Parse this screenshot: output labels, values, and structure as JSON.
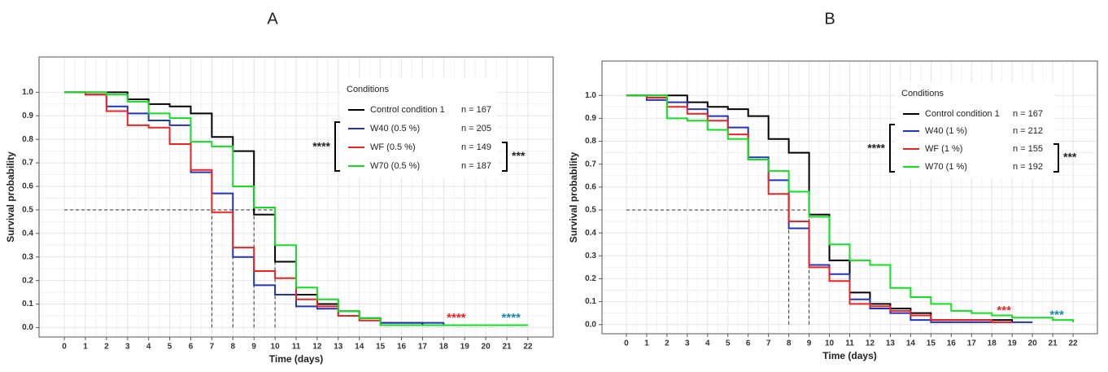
{
  "chart_data": [
    {
      "type": "step",
      "panel_label": "A",
      "xlabel": "Time (days)",
      "ylabel": "Survival probability",
      "xlim": [
        -1.2,
        23.2
      ],
      "ylim": [
        -0.04,
        1.15
      ],
      "xticks": [
        0,
        1,
        2,
        3,
        4,
        5,
        6,
        7,
        8,
        9,
        10,
        11,
        12,
        13,
        14,
        15,
        16,
        17,
        18,
        19,
        20,
        21,
        22
      ],
      "yticks": [
        {
          "value": 0,
          "label": "0.0"
        },
        0.1,
        0.2,
        0.3,
        0.4,
        0.5,
        0.6,
        0.7,
        0.8,
        0.9,
        {
          "value": 1,
          "label": "1.0"
        }
      ],
      "grid": true,
      "legend_title": "Conditions",
      "x": [
        0,
        1,
        2,
        3,
        4,
        5,
        6,
        7,
        8,
        9,
        10,
        11,
        12,
        13,
        14,
        15,
        16,
        17,
        18,
        19,
        20,
        21,
        22
      ],
      "series": [
        {
          "name": "Control condition 1",
          "n_label": "n = 167",
          "color": "#000000",
          "values": [
            1.0,
            1.0,
            1.0,
            0.97,
            0.95,
            0.94,
            0.91,
            0.81,
            0.75,
            0.48,
            0.28,
            0.14,
            0.1,
            0.07,
            0.04,
            0.02,
            0.02,
            0.01,
            0.01,
            0.01,
            0.01,
            null,
            null
          ]
        },
        {
          "name": "W40 (0.5 %)",
          "n_label": "n = 205",
          "color": "#2233bb",
          "values": [
            1.0,
            0.99,
            0.94,
            0.91,
            0.88,
            0.86,
            0.66,
            0.57,
            0.3,
            0.18,
            0.14,
            0.09,
            0.08,
            0.05,
            0.04,
            0.02,
            0.02,
            0.02,
            0.01,
            0.01,
            0.01,
            null,
            null
          ]
        },
        {
          "name": "WF (0.5 %)",
          "n_label": "n = 149",
          "color": "#ee2222",
          "values": [
            1.0,
            0.99,
            0.92,
            0.86,
            0.85,
            0.78,
            0.67,
            0.49,
            0.34,
            0.24,
            0.21,
            0.12,
            0.09,
            0.05,
            0.03,
            0.01,
            0.01,
            0.01,
            0.01,
            0.01,
            null,
            null,
            null
          ]
        },
        {
          "name": "W70 (0.5 %)",
          "n_label": "n = 187",
          "color": "#11e022",
          "values": [
            1.0,
            1.0,
            0.99,
            0.96,
            0.91,
            0.89,
            0.79,
            0.77,
            0.6,
            0.51,
            0.35,
            0.17,
            0.12,
            0.07,
            0.04,
            0.01,
            0.01,
            0.01,
            0.01,
            0.01,
            0.01,
            0.01,
            0.01
          ]
        }
      ],
      "median_y": 0.5,
      "medians": [
        7,
        8,
        9,
        10
      ],
      "bracket_left_label": "****",
      "bracket_right_label": "***",
      "end_annotations": [
        {
          "text": "****",
          "color": "#ee2222"
        },
        {
          "text": "****",
          "color": "#1a86b5"
        }
      ]
    },
    {
      "type": "step",
      "panel_label": "B",
      "xlabel": "Time (days)",
      "ylabel": "Survival probability",
      "xlim": [
        -1.2,
        23.2
      ],
      "ylim": [
        -0.04,
        1.15
      ],
      "xticks": [
        0,
        1,
        2,
        3,
        4,
        5,
        6,
        7,
        8,
        9,
        10,
        11,
        12,
        13,
        14,
        15,
        16,
        17,
        18,
        19,
        20,
        21,
        22
      ],
      "yticks": [
        {
          "value": 0,
          "label": "0.0"
        },
        0.1,
        0.2,
        0.3,
        0.4,
        0.5,
        0.6,
        0.7,
        0.8,
        0.9,
        {
          "value": 1,
          "label": "1.0"
        }
      ],
      "grid": true,
      "legend_title": "Conditions",
      "x": [
        0,
        1,
        2,
        3,
        4,
        5,
        6,
        7,
        8,
        9,
        10,
        11,
        12,
        13,
        14,
        15,
        16,
        17,
        18,
        19,
        20,
        21,
        22
      ],
      "series": [
        {
          "name": "Control condition 1",
          "n_label": "n = 167",
          "color": "#000000",
          "values": [
            1.0,
            1.0,
            1.0,
            0.97,
            0.95,
            0.94,
            0.91,
            0.81,
            0.75,
            0.48,
            0.28,
            0.14,
            0.09,
            0.07,
            0.05,
            0.02,
            0.02,
            0.02,
            0.02,
            0.01,
            null,
            null,
            null
          ]
        },
        {
          "name": "W40 (1 %)",
          "n_label": "n = 212",
          "color": "#2233bb",
          "values": [
            1.0,
            0.98,
            0.97,
            0.94,
            0.91,
            0.86,
            0.73,
            0.63,
            0.42,
            0.26,
            0.22,
            0.11,
            0.07,
            0.05,
            0.02,
            0.01,
            0.01,
            0.01,
            0.01,
            0.01,
            0.01,
            null,
            null
          ]
        },
        {
          "name": "WF (1 %)",
          "n_label": "n = 155",
          "color": "#ee2222",
          "values": [
            1.0,
            0.99,
            0.95,
            0.92,
            0.89,
            0.83,
            0.72,
            0.57,
            0.45,
            0.25,
            0.19,
            0.09,
            0.08,
            0.06,
            0.04,
            0.02,
            0.02,
            0.02,
            0.01,
            0.01,
            null,
            null,
            null
          ]
        },
        {
          "name": "W70 (1 %)",
          "n_label": "n = 192",
          "color": "#11e022",
          "values": [
            1.0,
            1.0,
            0.9,
            0.89,
            0.85,
            0.81,
            0.72,
            0.67,
            0.58,
            0.47,
            0.35,
            0.28,
            0.26,
            0.16,
            0.12,
            0.09,
            0.06,
            0.05,
            0.04,
            0.03,
            0.03,
            0.02,
            0.01
          ]
        }
      ],
      "median_y": 0.5,
      "medians": [
        8,
        9
      ],
      "bracket_left_label": "****",
      "bracket_right_label": "***",
      "end_annotations": [
        {
          "text": "***",
          "color": "#ee2222"
        },
        {
          "text": "***",
          "color": "#1a86b5"
        }
      ]
    }
  ]
}
